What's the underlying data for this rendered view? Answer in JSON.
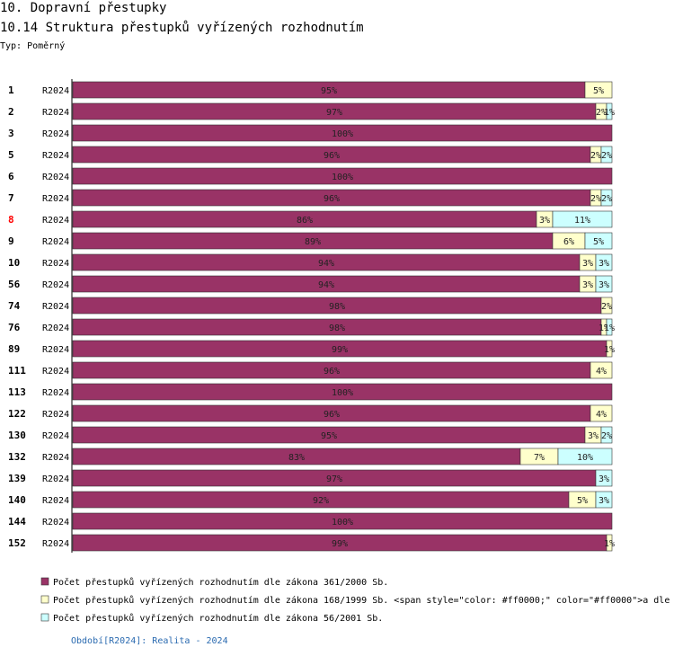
{
  "chart_data": {
    "type": "bar",
    "orientation": "horizontal",
    "stacked": true,
    "title": "10. Dopravní přestupky",
    "subtitle": "10.14 Struktura přestupků vyřízených rozhodnutím",
    "note": "Typ: Poměrný",
    "footer": "Období[R2024]: Realita - 2024",
    "categories": [
      "1",
      "2",
      "3",
      "5",
      "6",
      "7",
      "8",
      "9",
      "10",
      "56",
      "74",
      "76",
      "89",
      "111",
      "113",
      "122",
      "130",
      "132",
      "139",
      "140",
      "144",
      "152"
    ],
    "category_colors": [
      "#000000",
      "#000000",
      "#000000",
      "#000000",
      "#000000",
      "#000000",
      "#ff0000",
      "#000000",
      "#000000",
      "#000000",
      "#000000",
      "#000000",
      "#000000",
      "#000000",
      "#000000",
      "#000000",
      "#000000",
      "#000000",
      "#000000",
      "#000000",
      "#000000",
      "#000000"
    ],
    "periods": [
      "R2024",
      "R2024",
      "R2024",
      "R2024",
      "R2024",
      "R2024",
      "R2024",
      "R2024",
      "R2024",
      "R2024",
      "R2024",
      "R2024",
      "R2024",
      "R2024",
      "R2024",
      "R2024",
      "R2024",
      "R2024",
      "R2024",
      "R2024",
      "R2024",
      "R2024"
    ],
    "xlim": [
      0,
      100
    ],
    "series": [
      {
        "name": "Počet přestupků vyřízených rozhodnutím dle zákona 361/2000 Sb.",
        "color": "#993366",
        "values": [
          95,
          97,
          100,
          96,
          100,
          96,
          86,
          89,
          94,
          94,
          98,
          98,
          99,
          96,
          100,
          96,
          95,
          83,
          97,
          92,
          100,
          99
        ],
        "value_labels": [
          "95%",
          "97%",
          "100%",
          "96%",
          "100%",
          "96%",
          "86%",
          "89%",
          "94%",
          "94%",
          "98%",
          "98%",
          "99%",
          "96%",
          "100%",
          "96%",
          "95%",
          "83%",
          "97%",
          "92%",
          "100%",
          "99%"
        ]
      },
      {
        "name": "Počet přestupků vyřízených rozhodnutím dle zákona 168/1999 Sb. <span style=\"color: #ff0000;\" color=\"#ff0000\">a dle",
        "color": "#ffffcc",
        "values": [
          5,
          2,
          null,
          2,
          null,
          2,
          3,
          6,
          3,
          3,
          2,
          1,
          1,
          4,
          null,
          4,
          3,
          7,
          null,
          5,
          null,
          1
        ],
        "value_labels": [
          "5%",
          "2%",
          null,
          "2%",
          null,
          "2%",
          "3%",
          "6%",
          "3%",
          "3%",
          "2%",
          "1%",
          "1%",
          "4%",
          null,
          "4%",
          "3%",
          "7%",
          null,
          "5%",
          null,
          "1%"
        ]
      },
      {
        "name": "Počet přestupků vyřízených rozhodnutím dle zákona 56/2001 Sb.",
        "color": "#ccffff",
        "values": [
          null,
          1,
          null,
          2,
          null,
          2,
          11,
          5,
          3,
          3,
          null,
          1,
          null,
          null,
          null,
          null,
          2,
          10,
          3,
          3,
          null,
          null
        ],
        "value_labels": [
          null,
          "1%",
          null,
          "2%",
          null,
          "2%",
          "11%",
          "5%",
          "3%",
          "3%",
          null,
          "1%",
          null,
          null,
          null,
          null,
          "2%",
          "10%",
          "3%",
          "3%",
          null,
          null
        ]
      }
    ]
  }
}
